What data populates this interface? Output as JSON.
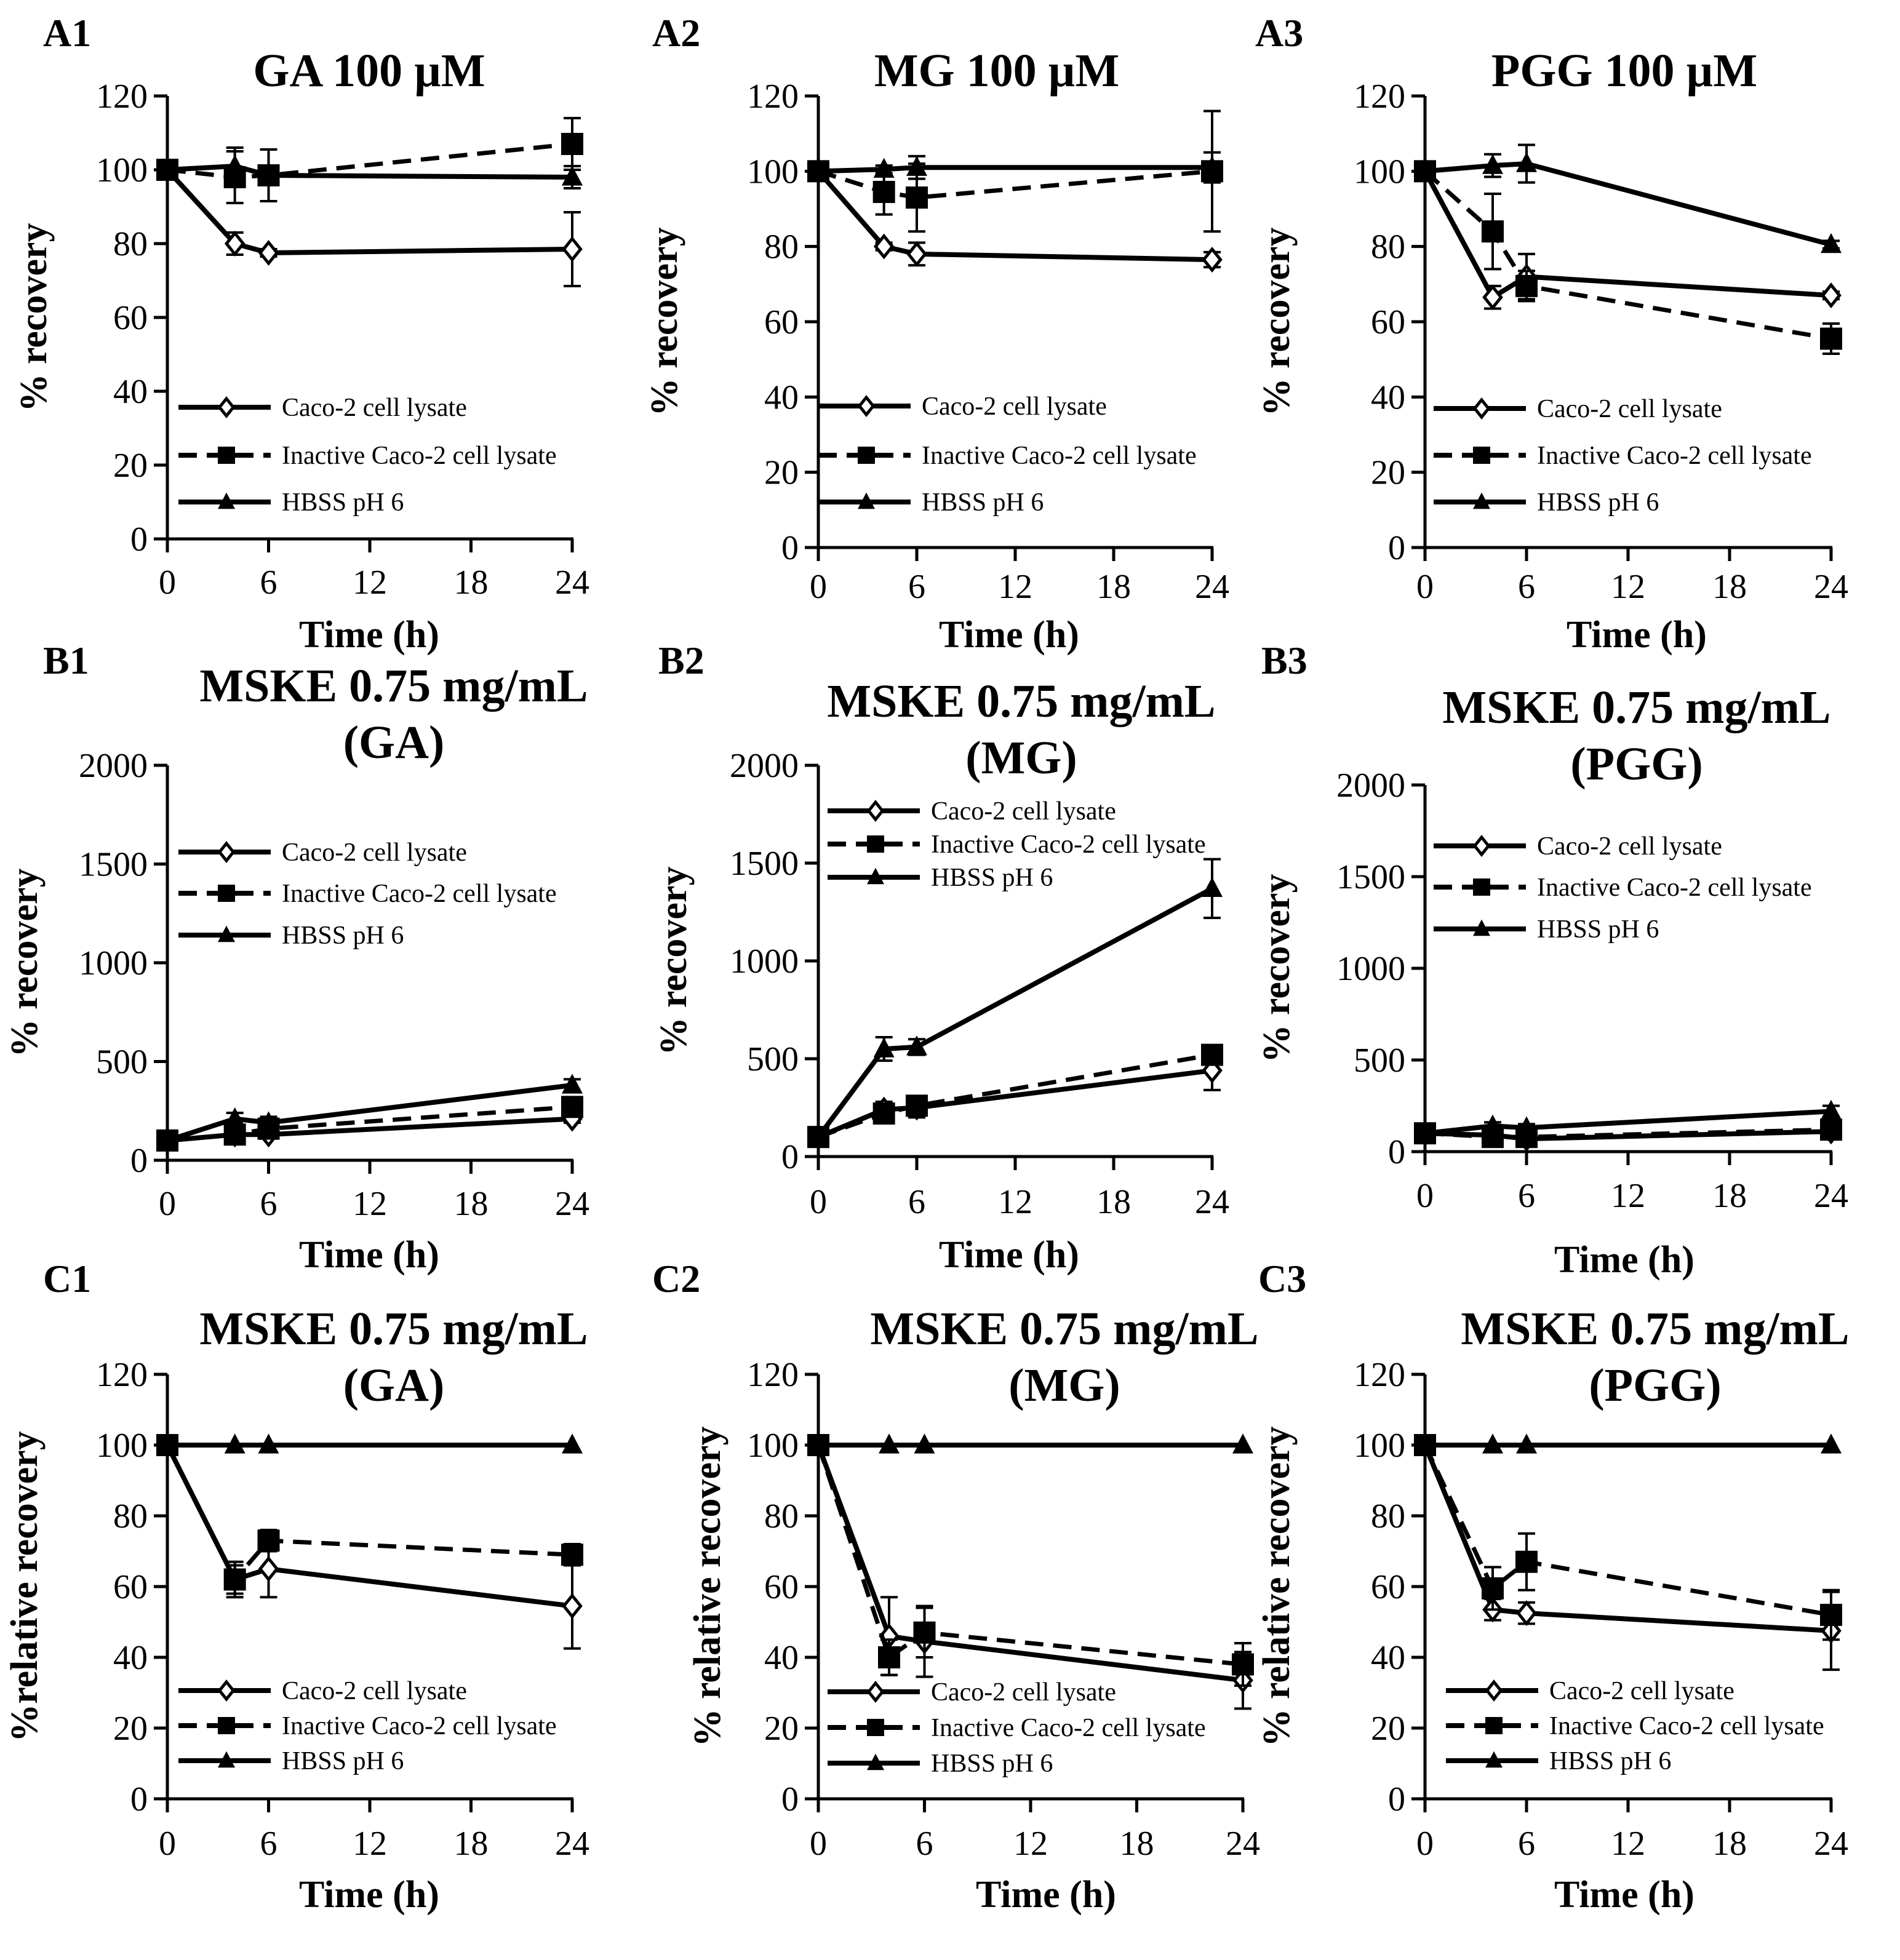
{
  "chart_data": [
    {
      "id": "A1",
      "type": "line",
      "title": [
        "GA 100 µM"
      ],
      "xlabel": "Time (h)",
      "ylabel": "% recovery",
      "ylim": [
        0,
        120
      ],
      "yticks": [
        0,
        20,
        40,
        60,
        80,
        100,
        120
      ],
      "xticks": [
        0,
        6,
        12,
        18,
        24
      ],
      "xlim": [
        0,
        24
      ],
      "x": [
        0,
        4,
        6,
        24
      ],
      "series": [
        {
          "name": "Caco-2 cell lysate",
          "values": [
            100,
            80,
            77.5,
            78.5
          ],
          "err": [
            0,
            3,
            1,
            10
          ]
        },
        {
          "name": "Inactive Caco-2 cell lysate",
          "values": [
            100,
            98,
            98.5,
            107
          ],
          "err": [
            0,
            7,
            7,
            7
          ]
        },
        {
          "name": "HBSS pH 6",
          "values": [
            100,
            101,
            98.5,
            98
          ],
          "err": [
            0,
            5,
            1,
            3
          ]
        }
      ]
    },
    {
      "id": "A2",
      "type": "line",
      "title": [
        "MG 100 µM"
      ],
      "xlabel": "Time (h)",
      "ylabel": "% recovery",
      "ylim": [
        0,
        120
      ],
      "yticks": [
        0,
        20,
        40,
        60,
        80,
        100,
        120
      ],
      "xticks": [
        0,
        6,
        12,
        18,
        24
      ],
      "xlim": [
        0,
        24
      ],
      "x": [
        0,
        4,
        6,
        24
      ],
      "series": [
        {
          "name": "Caco-2 cell lysate",
          "values": [
            100,
            80,
            78,
            76.5
          ],
          "err": [
            0,
            1,
            3,
            2
          ]
        },
        {
          "name": "Inactive Caco-2 cell lysate",
          "values": [
            100,
            94.5,
            93,
            100
          ],
          "err": [
            0,
            6,
            9,
            16
          ]
        },
        {
          "name": "HBSS pH 6",
          "values": [
            100,
            100.5,
            101,
            101
          ],
          "err": [
            0,
            1,
            3,
            4
          ]
        }
      ]
    },
    {
      "id": "A3",
      "type": "line",
      "title": [
        "PGG 100 µM"
      ],
      "xlabel": "Time (h)",
      "ylabel": "% recovery",
      "ylim": [
        0,
        120
      ],
      "yticks": [
        0,
        20,
        40,
        60,
        80,
        100,
        120
      ],
      "xticks": [
        0,
        6,
        12,
        18,
        24
      ],
      "xlim": [
        0,
        24
      ],
      "x": [
        0,
        4,
        6,
        24
      ],
      "series": [
        {
          "name": "Caco-2 cell lysate",
          "values": [
            100,
            66.5,
            72,
            67
          ],
          "err": [
            0,
            3,
            6,
            1
          ]
        },
        {
          "name": "Inactive Caco-2 cell lysate",
          "values": [
            100,
            84,
            69.5,
            55.5
          ],
          "err": [
            0,
            10,
            4,
            4
          ]
        },
        {
          "name": "HBSS pH 6",
          "values": [
            100,
            101.5,
            102,
            80.5
          ],
          "err": [
            0,
            3,
            5,
            1
          ]
        }
      ]
    },
    {
      "id": "B1",
      "type": "line",
      "title": [
        "MSKE 0.75 mg/mL",
        "(GA)"
      ],
      "xlabel": "Time (h)",
      "ylabel": "% recovery",
      "ylim": [
        0,
        2000
      ],
      "yticks": [
        0,
        500,
        1000,
        1500,
        2000
      ],
      "xticks": [
        0,
        6,
        12,
        18,
        24
      ],
      "xlim": [
        0,
        24
      ],
      "x": [
        0,
        4,
        6,
        24
      ],
      "series": [
        {
          "name": "Caco-2 cell lysate",
          "values": [
            100,
            130,
            130,
            210
          ],
          "err": [
            0,
            20,
            20,
            20
          ]
        },
        {
          "name": "Inactive Caco-2 cell lysate",
          "values": [
            100,
            130,
            160,
            270
          ],
          "err": [
            0,
            20,
            30,
            30
          ]
        },
        {
          "name": "HBSS pH 6",
          "values": [
            100,
            210,
            190,
            380
          ],
          "err": [
            0,
            30,
            30,
            30
          ]
        }
      ]
    },
    {
      "id": "B2",
      "type": "line",
      "title": [
        "MSKE 0.75 mg/mL",
        "(MG)"
      ],
      "xlabel": "Time (h)",
      "ylabel": "% recovery",
      "ylim": [
        0,
        2000
      ],
      "yticks": [
        0,
        500,
        1000,
        1500,
        2000
      ],
      "xticks": [
        0,
        6,
        12,
        18,
        24
      ],
      "xlim": [
        0,
        24
      ],
      "x": [
        0,
        4,
        6,
        24
      ],
      "series": [
        {
          "name": "Caco-2 cell lysate",
          "values": [
            100,
            240,
            250,
            440
          ],
          "err": [
            0,
            40,
            50,
            100
          ]
        },
        {
          "name": "Inactive Caco-2 cell lysate",
          "values": [
            100,
            220,
            260,
            520
          ],
          "err": [
            0,
            40,
            40,
            30
          ]
        },
        {
          "name": "HBSS pH 6",
          "values": [
            100,
            550,
            560,
            1370
          ],
          "err": [
            0,
            60,
            40,
            150
          ]
        }
      ]
    },
    {
      "id": "B3",
      "type": "line",
      "title": [
        "MSKE 0.75 mg/mL",
        "(PGG)"
      ],
      "xlabel": "Time (h)",
      "ylabel": "% recovery",
      "ylim": [
        0,
        2000
      ],
      "yticks": [
        0,
        500,
        1000,
        1500,
        2000
      ],
      "xticks": [
        0,
        6,
        12,
        18,
        24
      ],
      "xlim": [
        0,
        24
      ],
      "x": [
        0,
        4,
        6,
        24
      ],
      "series": [
        {
          "name": "Caco-2 cell lysate",
          "values": [
            100,
            90,
            70,
            110
          ],
          "err": [
            0,
            20,
            20,
            20
          ]
        },
        {
          "name": "Inactive Caco-2 cell lysate",
          "values": [
            100,
            80,
            80,
            120
          ],
          "err": [
            0,
            20,
            20,
            20
          ]
        },
        {
          "name": "HBSS pH 6",
          "values": [
            100,
            140,
            130,
            220
          ],
          "err": [
            0,
            20,
            20,
            30
          ]
        }
      ]
    },
    {
      "id": "C1",
      "type": "line",
      "title": [
        "MSKE 0.75 mg/mL",
        "(GA)"
      ],
      "xlabel": "Time (h)",
      "ylabel": "%relative recovery",
      "ylim": [
        0,
        120
      ],
      "yticks": [
        0,
        20,
        40,
        60,
        80,
        100,
        120
      ],
      "xticks": [
        0,
        6,
        12,
        18,
        24
      ],
      "xlim": [
        0,
        24
      ],
      "x": [
        0,
        4,
        6,
        24
      ],
      "series": [
        {
          "name": "Caco-2 cell lysate",
          "values": [
            100,
            62,
            65,
            54.5
          ],
          "err": [
            0,
            4,
            8,
            12
          ]
        },
        {
          "name": "Inactive Caco-2 cell lysate",
          "values": [
            100,
            62,
            73,
            69
          ],
          "err": [
            0,
            5,
            3,
            3
          ]
        },
        {
          "name": "HBSS pH 6",
          "values": [
            100,
            100,
            100,
            100
          ],
          "err": [
            0,
            0,
            0,
            0
          ]
        }
      ]
    },
    {
      "id": "C2",
      "type": "line",
      "title": [
        "MSKE 0.75 mg/mL",
        "(MG)"
      ],
      "xlabel": "Time (h)",
      "ylabel": "% relative recovery",
      "ylim": [
        0,
        120
      ],
      "yticks": [
        0,
        20,
        40,
        60,
        80,
        100,
        120
      ],
      "xticks": [
        0,
        6,
        12,
        18,
        24
      ],
      "xlim": [
        0,
        24
      ],
      "x": [
        0,
        4,
        6,
        24
      ],
      "series": [
        {
          "name": "Caco-2 cell lysate",
          "values": [
            100,
            46,
            44.5,
            33.5
          ],
          "err": [
            0,
            11,
            10,
            8
          ]
        },
        {
          "name": "Inactive Caco-2 cell lysate",
          "values": [
            100,
            40,
            47,
            38
          ],
          "err": [
            0,
            5,
            7,
            6
          ]
        },
        {
          "name": "HBSS pH 6",
          "values": [
            100,
            100,
            100,
            100
          ],
          "err": [
            0,
            0,
            0,
            0
          ]
        }
      ]
    },
    {
      "id": "C3",
      "type": "line",
      "title": [
        "MSKE 0.75 mg/mL",
        "(PGG)"
      ],
      "xlabel": "Time (h)",
      "ylabel": "% relative recovery",
      "ylim": [
        0,
        120
      ],
      "yticks": [
        0,
        20,
        40,
        60,
        80,
        100,
        120
      ],
      "xticks": [
        0,
        6,
        12,
        18,
        24
      ],
      "xlim": [
        0,
        24
      ],
      "x": [
        0,
        4,
        6,
        24
      ],
      "series": [
        {
          "name": "Caco-2 cell lysate",
          "values": [
            100,
            53.5,
            52.5,
            47.5
          ],
          "err": [
            0,
            3,
            3,
            11
          ]
        },
        {
          "name": "Inactive Caco-2 cell lysate",
          "values": [
            100,
            59.5,
            67,
            52
          ],
          "err": [
            0,
            6,
            8,
            7
          ]
        },
        {
          "name": "HBSS pH 6",
          "values": [
            100,
            100,
            100,
            100
          ],
          "err": [
            0,
            0,
            0,
            0
          ]
        }
      ]
    }
  ]
}
